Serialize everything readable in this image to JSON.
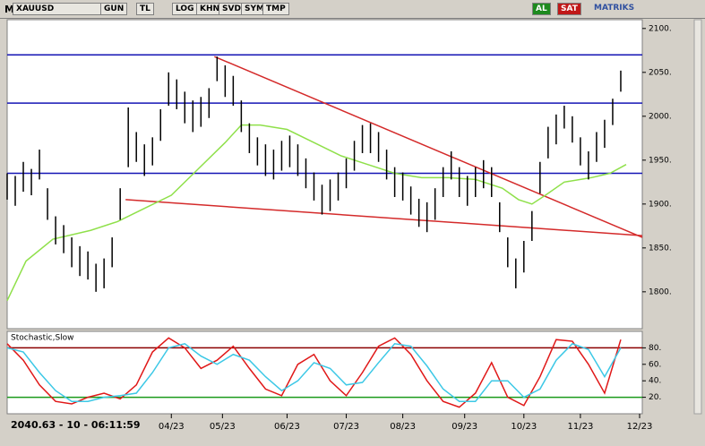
{
  "toolbar": {
    "menu": "M",
    "symbol": "XAUUSD",
    "buttons": [
      "GUN",
      "TL",
      "LOG",
      "KHN",
      "SVD",
      "SYM",
      "TMP"
    ],
    "buy": "AL",
    "sell": "SAT",
    "brand": "MATRIKS"
  },
  "status": "2040.63 - 10 - 06:11:59",
  "chart_data": [
    {
      "type": "ohlc",
      "color": "#000000",
      "x": [
        0,
        3,
        6,
        9,
        12,
        15,
        18,
        21,
        24,
        27,
        30,
        33,
        36,
        39,
        42,
        45,
        48,
        51,
        54,
        57,
        60,
        63,
        66,
        69,
        72,
        75,
        78,
        81,
        84,
        87,
        90,
        93,
        96,
        99,
        102,
        105,
        108,
        111,
        114,
        117,
        120,
        123,
        126,
        129,
        132,
        135,
        138,
        141,
        144,
        147,
        150,
        153,
        156,
        159,
        162,
        165,
        168,
        171,
        174,
        177,
        180,
        183,
        186,
        189,
        192,
        195,
        198,
        201,
        204,
        207,
        210,
        213,
        216,
        219,
        222,
        225,
        228
      ],
      "high": [
        1935,
        1932,
        1948,
        1940,
        1962,
        1918,
        1886,
        1876,
        1862,
        1852,
        1846,
        1832,
        1838,
        1862,
        1918,
        2010,
        1982,
        1968,
        1976,
        2008,
        2050,
        2042,
        2028,
        2018,
        2022,
        2032,
        2068,
        2058,
        2046,
        2018,
        1992,
        1976,
        1968,
        1962,
        1972,
        1978,
        1968,
        1952,
        1936,
        1922,
        1928,
        1936,
        1952,
        1972,
        1990,
        1992,
        1982,
        1962,
        1942,
        1936,
        1920,
        1906,
        1902,
        1918,
        1942,
        1960,
        1942,
        1932,
        1942,
        1950,
        1942,
        1902,
        1862,
        1838,
        1858,
        1892,
        1948,
        1988,
        2002,
        2012,
        2000,
        1976,
        1960,
        1982,
        1996,
        2020,
        2052
      ],
      "low": [
        1905,
        1898,
        1914,
        1910,
        1928,
        1882,
        1854,
        1844,
        1828,
        1818,
        1814,
        1800,
        1804,
        1828,
        1882,
        1942,
        1948,
        1932,
        1944,
        1972,
        2012,
        2008,
        1992,
        1982,
        1988,
        1998,
        2040,
        2022,
        2012,
        1982,
        1958,
        1944,
        1932,
        1928,
        1938,
        1942,
        1932,
        1918,
        1904,
        1888,
        1892,
        1904,
        1918,
        1938,
        1958,
        1958,
        1948,
        1928,
        1908,
        1904,
        1888,
        1874,
        1868,
        1882,
        1908,
        1928,
        1908,
        1898,
        1908,
        1918,
        1908,
        1868,
        1828,
        1804,
        1822,
        1858,
        1912,
        1952,
        1968,
        1986,
        1970,
        1944,
        1928,
        1948,
        1964,
        1990,
        2028
      ],
      "ylim": [
        1758,
        2110
      ],
      "yticks": [
        {
          "value": 1800,
          "label": "1800."
        },
        {
          "value": 1850,
          "label": "1850."
        },
        {
          "value": 1900,
          "label": "1900."
        },
        {
          "value": 1950,
          "label": "1950."
        },
        {
          "value": 2000,
          "label": "2000."
        },
        {
          "value": 2050,
          "label": "2050."
        },
        {
          "value": 2100,
          "label": "2100."
        }
      ],
      "xlim": [
        0,
        236
      ],
      "xticks": [
        {
          "value": 61,
          "label": "04/23"
        },
        {
          "value": 80,
          "label": "05/23"
        },
        {
          "value": 104,
          "label": "06/23"
        },
        {
          "value": 126,
          "label": "07/23"
        },
        {
          "value": 147,
          "label": "08/23"
        },
        {
          "value": 170,
          "label": "09/23"
        },
        {
          "value": 192,
          "label": "10/23"
        },
        {
          "value": 213,
          "label": "11/23"
        },
        {
          "value": 235,
          "label": "12/23"
        }
      ],
      "hlines": {
        "color": "#1414b4",
        "values": [
          2070,
          2015,
          1935
        ]
      },
      "trendlines": [
        {
          "color": "#d42a2a",
          "x": [
            77,
            236
          ],
          "values": [
            2068,
            1862
          ]
        },
        {
          "color": "#d42a2a",
          "x": [
            44,
            236
          ],
          "values": [
            1905,
            1864
          ]
        }
      ],
      "average": {
        "color": "#8fe04a",
        "x": [
          0,
          7,
          17,
          31,
          41,
          51,
          61,
          71,
          81,
          87,
          94,
          104,
          114,
          124,
          134,
          144,
          154,
          164,
          174,
          184,
          190,
          195,
          200,
          207,
          217,
          224,
          230
        ],
        "values": [
          1790,
          1835,
          1860,
          1870,
          1880,
          1895,
          1910,
          1940,
          1970,
          1990,
          1990,
          1985,
          1970,
          1955,
          1945,
          1935,
          1930,
          1930,
          1928,
          1918,
          1905,
          1900,
          1910,
          1925,
          1930,
          1935,
          1945
        ]
      }
    },
    {
      "type": "line",
      "title": "Stochastic,Slow",
      "x": [
        0,
        6,
        12,
        18,
        24,
        30,
        36,
        42,
        48,
        54,
        60,
        66,
        72,
        78,
        84,
        90,
        96,
        102,
        108,
        114,
        120,
        126,
        132,
        138,
        144,
        150,
        156,
        162,
        168,
        174,
        180,
        186,
        192,
        198,
        204,
        210,
        216,
        222,
        228
      ],
      "series": [
        {
          "color": "#e01818",
          "values": [
            85,
            65,
            35,
            15,
            12,
            20,
            25,
            18,
            35,
            75,
            92,
            80,
            55,
            65,
            82,
            55,
            30,
            22,
            60,
            72,
            40,
            22,
            50,
            82,
            92,
            72,
            40,
            15,
            8,
            25,
            62,
            20,
            10,
            45,
            90,
            88,
            60,
            25,
            90
          ]
        },
        {
          "color": "#3cc8e6",
          "values": [
            80,
            75,
            50,
            28,
            15,
            15,
            20,
            22,
            25,
            50,
            80,
            85,
            70,
            60,
            72,
            65,
            45,
            28,
            40,
            62,
            55,
            35,
            38,
            62,
            85,
            82,
            58,
            30,
            15,
            15,
            40,
            40,
            20,
            30,
            65,
            85,
            78,
            45,
            80
          ]
        }
      ],
      "levels": [
        {
          "value": 80,
          "color": "#8b0000"
        },
        {
          "value": 20,
          "color": "#1a9a1a"
        }
      ],
      "ylim": [
        0,
        100
      ],
      "xlim": [
        0,
        236
      ],
      "yticks": [
        {
          "value": 20,
          "label": "20."
        },
        {
          "value": 40,
          "label": "40."
        },
        {
          "value": 60,
          "label": "60."
        },
        {
          "value": 80,
          "label": "80."
        }
      ]
    }
  ]
}
